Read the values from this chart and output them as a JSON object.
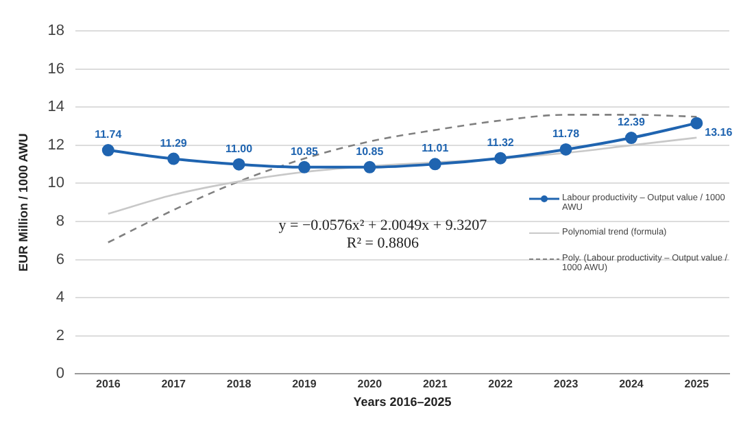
{
  "chart_data": {
    "type": "line",
    "xlabel": "Years 2016–2025",
    "ylabel": "EUR Million / 1000 AWU",
    "categories": [
      "2016",
      "2017",
      "2018",
      "2019",
      "2020",
      "2021",
      "2022",
      "2023",
      "2024",
      "2025"
    ],
    "series": [
      {
        "name": "Labour productivity – Output value / 1000 AWU",
        "color": "#1f64b0",
        "marker": "circle",
        "line_style": "solid",
        "value_labels": [
          "11.74",
          "11.29",
          "11.00",
          "10.85",
          "10.85",
          "11.01",
          "11.32",
          "11.78",
          "12.39",
          "13.16"
        ],
        "values": [
          11.74,
          11.29,
          11.0,
          10.85,
          10.85,
          11.01,
          11.32,
          11.78,
          12.39,
          13.16
        ]
      },
      {
        "name": "Polynomial trend (formula)",
        "color": "#c8c8c8",
        "marker": "none",
        "line_style": "solid",
        "values": [
          8.4,
          9.4,
          10.1,
          10.6,
          10.9,
          11.1,
          11.3,
          11.6,
          12.0,
          12.4
        ]
      },
      {
        "name": "Poly. (Labour productivity – Output value / 1000 AWU)",
        "color": "#808080",
        "marker": "none",
        "line_style": "dashed",
        "values": [
          6.9,
          8.6,
          10.1,
          11.3,
          12.2,
          12.8,
          13.3,
          13.6,
          13.6,
          13.5
        ]
      }
    ],
    "ylim": [
      0,
      18
    ],
    "yticks": [
      0,
      2,
      4,
      6,
      8,
      10,
      12,
      14,
      16,
      18
    ],
    "grid": "y",
    "legend": "right",
    "annotations": [
      "y = −0.0576x² + 2.0049x + 9.3207",
      "R² = 0.8806"
    ]
  }
}
